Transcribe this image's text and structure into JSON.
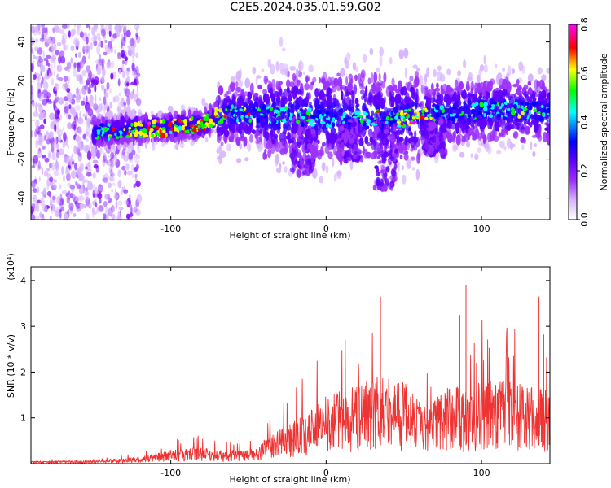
{
  "chart_data": [
    {
      "type": "heatmap",
      "title": "C2E5.2024.035.01.59.G02",
      "xlabel": "Height of straight line (km)",
      "ylabel": "Frequency (Hz)",
      "xlim": [
        -190,
        144
      ],
      "ylim": [
        -51,
        49
      ],
      "xticks": [
        -100,
        0,
        100
      ],
      "yticks": [
        -40,
        -20,
        0,
        20,
        40
      ],
      "colorbar": {
        "label": "Normalized spectral amplitude",
        "range": [
          0,
          0.8
        ],
        "ticks": [
          "0.0",
          "0.2",
          "0.4",
          "0.6",
          "0.8"
        ],
        "colors": [
          "#ffffff",
          "#d8b4ff",
          "#9b30ff",
          "#6000ff",
          "#0000ff",
          "#00ffff",
          "#00ff00",
          "#ffff00",
          "#ff0000",
          "#ff00ff"
        ]
      },
      "ridge": {
        "x": [
          -190,
          -160,
          -130,
          -100,
          -80,
          -70,
          -60,
          -40,
          -20,
          0,
          20,
          40,
          60,
          80,
          100,
          120,
          144
        ],
        "y": [
          -7,
          -7,
          -5,
          -4,
          -2,
          2,
          3,
          3,
          2,
          1,
          2,
          0,
          2,
          4,
          5,
          5,
          4
        ]
      }
    },
    {
      "type": "area",
      "xlabel": "Height of straight line (km)",
      "ylabel": "SNR (10 * v/v)",
      "y_multiplier": "(x10⁴)",
      "xlim": [
        -190,
        144
      ],
      "ylim": [
        0,
        4.3
      ],
      "xticks": [
        -100,
        0,
        100
      ],
      "yticks": [
        1,
        2,
        3,
        4
      ],
      "color": "#ee3333",
      "envelope": {
        "x": [
          -190,
          -150,
          -120,
          -100,
          -80,
          -60,
          -45,
          -38,
          -30,
          -20,
          -10,
          0,
          10,
          20,
          30,
          40,
          50,
          60,
          65,
          70,
          80,
          90,
          100,
          110,
          120,
          130,
          144
        ],
        "y": [
          0.05,
          0.07,
          0.15,
          0.3,
          0.35,
          0.3,
          0.32,
          0.6,
          0.75,
          0.95,
          1.15,
          1.5,
          1.6,
          1.7,
          1.9,
          1.9,
          1.8,
          1.5,
          1.2,
          1.4,
          1.8,
          1.6,
          1.8,
          1.8,
          1.8,
          1.7,
          1.6
        ]
      },
      "peaks": [
        {
          "x": 52,
          "y": 4.22
        },
        {
          "x": 90,
          "y": 3.9
        },
        {
          "x": 137,
          "y": 3.65
        },
        {
          "x": 35,
          "y": 3.65
        },
        {
          "x": 86,
          "y": 3.25
        },
        {
          "x": 140,
          "y": 2.82
        }
      ]
    }
  ]
}
